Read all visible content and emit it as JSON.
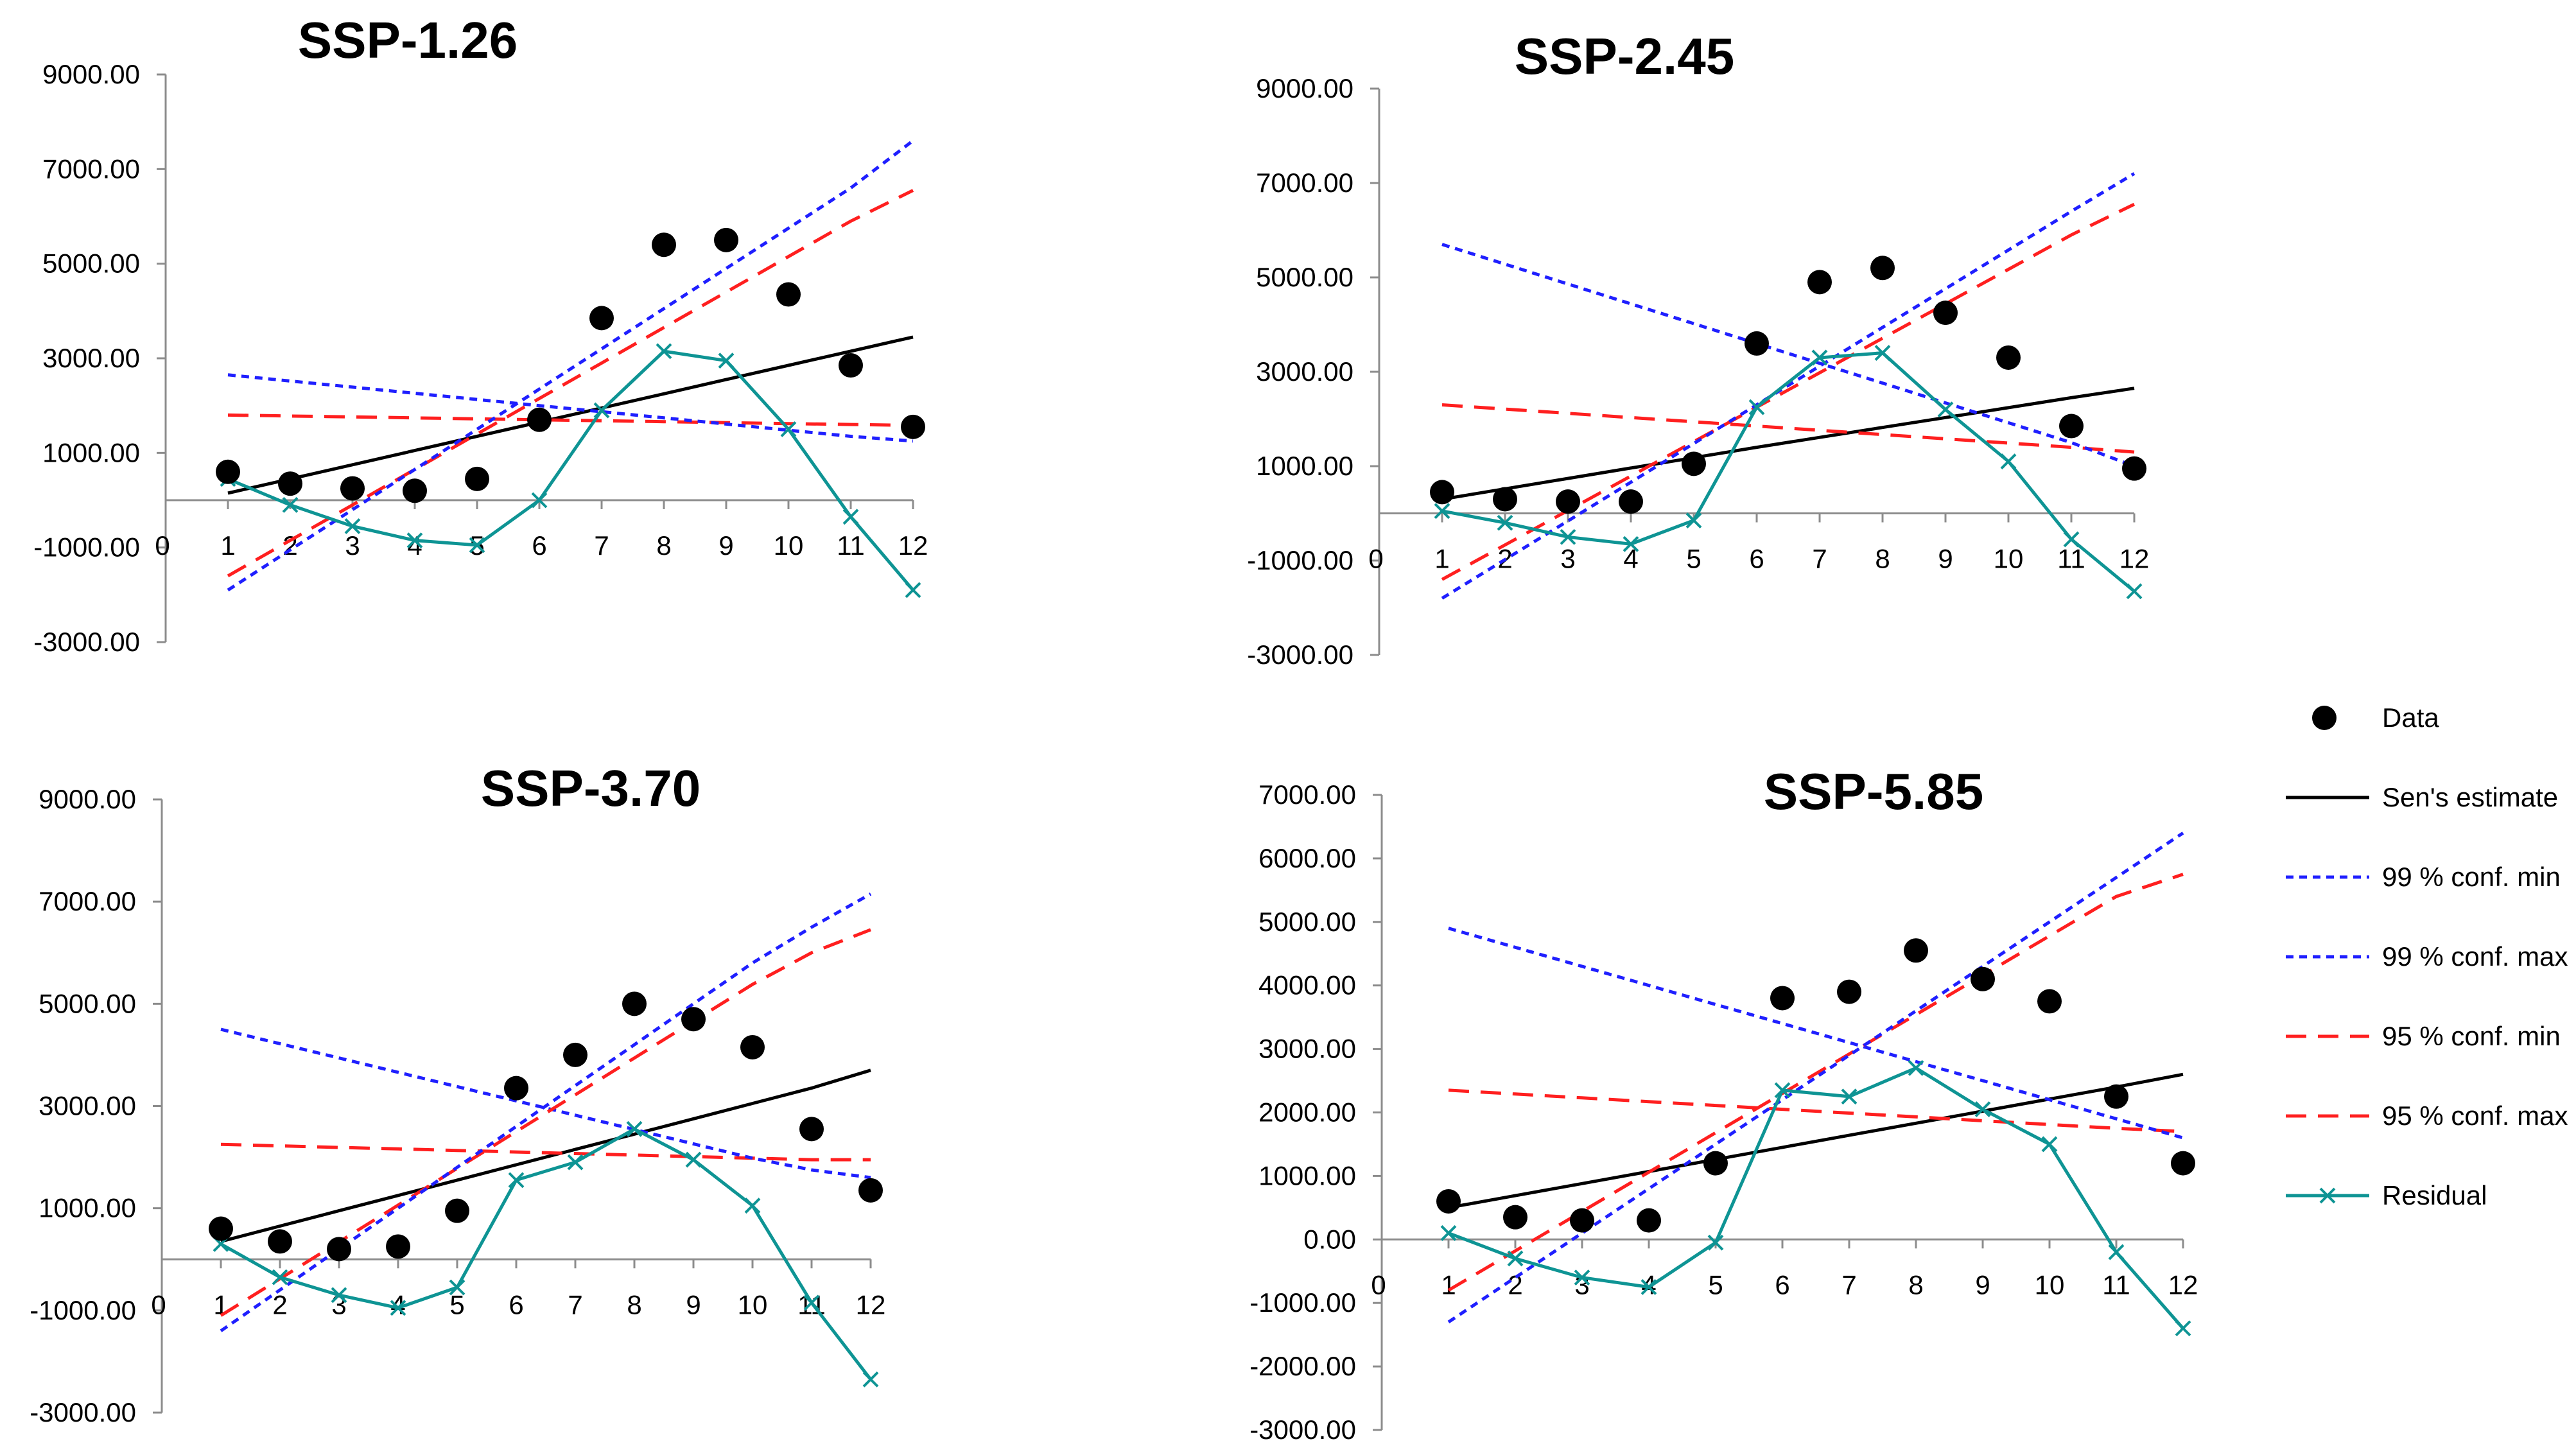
{
  "chart_data": [
    {
      "type": "scatter",
      "title": "SSP-1.26",
      "xlabel": "",
      "ylabel": "",
      "x": [
        1,
        2,
        3,
        4,
        5,
        6,
        7,
        8,
        9,
        10,
        11,
        12
      ],
      "xlim": [
        0,
        12
      ],
      "x_ticks": [
        "0",
        "1",
        "2",
        "3",
        "4",
        "5",
        "6",
        "7",
        "8",
        "9",
        "10",
        "11",
        "12"
      ],
      "ylim": [
        -3000,
        9000
      ],
      "y_ticks": [
        "9000.00",
        "7000.00",
        "5000.00",
        "3000.00",
        "1000.00",
        "-1000.00",
        "-3000.00"
      ],
      "y_tick_values": [
        9000,
        7000,
        5000,
        3000,
        1000,
        -1000,
        -3000
      ],
      "series": [
        {
          "name": "Data",
          "values": [
            600,
            350,
            250,
            200,
            450,
            1700,
            3850,
            5400,
            5500,
            4350,
            2850,
            1550
          ]
        },
        {
          "name": "Sen's estimate",
          "values": [
            150,
            450,
            750,
            1050,
            1350,
            1650,
            1950,
            2250,
            2550,
            2850,
            3150,
            3450
          ]
        },
        {
          "name": "99 % conf. min",
          "values": [
            -1900,
            -1050,
            -200,
            650,
            1500,
            2350,
            3200,
            4050,
            4900,
            5750,
            6600,
            7600
          ]
        },
        {
          "name": "99 % conf. max",
          "values": [
            2650,
            2520,
            2390,
            2260,
            2130,
            2000,
            1870,
            1740,
            1610,
            1480,
            1350,
            1250
          ]
        },
        {
          "name": "95 % conf. min",
          "values": [
            -1600,
            -850,
            -100,
            650,
            1400,
            2150,
            2900,
            3650,
            4400,
            5150,
            5900,
            6550
          ]
        },
        {
          "name": "95 % conf. max",
          "values": [
            1800,
            1780,
            1760,
            1740,
            1720,
            1700,
            1680,
            1660,
            1640,
            1620,
            1600,
            1580
          ]
        },
        {
          "name": "Residual",
          "values": [
            450,
            -100,
            -550,
            -850,
            -950,
            0,
            1900,
            3150,
            2950,
            1500,
            -350,
            -1900
          ]
        }
      ]
    },
    {
      "type": "scatter",
      "title": "SSP-2.45",
      "xlabel": "",
      "ylabel": "",
      "x": [
        1,
        2,
        3,
        4,
        5,
        6,
        7,
        8,
        9,
        10,
        11,
        12
      ],
      "xlim": [
        0,
        12
      ],
      "x_ticks": [
        "0",
        "1",
        "2",
        "3",
        "4",
        "5",
        "6",
        "7",
        "8",
        "9",
        "10",
        "11",
        "12"
      ],
      "ylim": [
        -3000,
        9000
      ],
      "y_ticks": [
        "9000.00",
        "7000.00",
        "5000.00",
        "3000.00",
        "1000.00",
        "-1000.00",
        "-3000.00"
      ],
      "y_tick_values": [
        9000,
        7000,
        5000,
        3000,
        1000,
        -1000,
        -3000
      ],
      "series": [
        {
          "name": "Data",
          "values": [
            450,
            300,
            250,
            250,
            1050,
            3600,
            4900,
            5200,
            4250,
            3300,
            1850,
            950
          ]
        },
        {
          "name": "Sen's estimate",
          "values": [
            300,
            520,
            740,
            960,
            1180,
            1400,
            1610,
            1820,
            2030,
            2240,
            2450,
            2650
          ]
        },
        {
          "name": "99 % conf. min",
          "values": [
            -1800,
            -980,
            -160,
            660,
            1480,
            2300,
            3120,
            3940,
            4760,
            5580,
            6400,
            7200
          ]
        },
        {
          "name": "99 % conf. max",
          "values": [
            5700,
            5280,
            4860,
            4440,
            4020,
            3600,
            3180,
            2760,
            2340,
            1920,
            1500,
            1000
          ]
        },
        {
          "name": "95 % conf. min",
          "values": [
            -1400,
            -670,
            60,
            790,
            1520,
            2250,
            2980,
            3710,
            4440,
            5170,
            5900,
            6550
          ]
        },
        {
          "name": "95 % conf. max",
          "values": [
            2300,
            2210,
            2120,
            2030,
            1940,
            1850,
            1760,
            1670,
            1580,
            1490,
            1400,
            1300
          ]
        },
        {
          "name": "Residual",
          "values": [
            50,
            -200,
            -500,
            -650,
            -150,
            2250,
            3300,
            3400,
            2200,
            1100,
            -550,
            -1650
          ]
        }
      ]
    },
    {
      "type": "scatter",
      "title": "SSP-3.70",
      "xlabel": "",
      "ylabel": "",
      "x": [
        1,
        2,
        3,
        4,
        5,
        6,
        7,
        8,
        9,
        10,
        11,
        12
      ],
      "xlim": [
        0,
        12
      ],
      "x_ticks": [
        "0",
        "1",
        "2",
        "3",
        "4",
        "5",
        "6",
        "7",
        "8",
        "9",
        "10",
        "11",
        "12"
      ],
      "ylim": [
        -3000,
        9000
      ],
      "y_ticks": [
        "9000.00",
        "7000.00",
        "5000.00",
        "3000.00",
        "1000.00",
        "-1000.00",
        "-3000.00"
      ],
      "y_tick_values": [
        9000,
        7000,
        5000,
        3000,
        1000,
        -1000,
        -3000
      ],
      "series": [
        {
          "name": "Data",
          "values": [
            600,
            350,
            200,
            250,
            950,
            3350,
            4000,
            5000,
            4700,
            4150,
            2550,
            1350
          ]
        },
        {
          "name": "Sen's estimate",
          "values": [
            350,
            650,
            950,
            1250,
            1550,
            1850,
            2150,
            2450,
            2750,
            3050,
            3350,
            3700
          ]
        },
        {
          "name": "99 % conf. min",
          "values": [
            -1400,
            -600,
            200,
            1000,
            1800,
            2600,
            3400,
            4200,
            5000,
            5800,
            6500,
            7150
          ]
        },
        {
          "name": "99 % conf. max",
          "values": [
            4500,
            4220,
            3940,
            3660,
            3380,
            3100,
            2820,
            2540,
            2260,
            1980,
            1750,
            1600
          ]
        },
        {
          "name": "95 % conf. min",
          "values": [
            -1100,
            -380,
            340,
            1060,
            1780,
            2500,
            3220,
            3940,
            4660,
            5380,
            6000,
            6450
          ]
        },
        {
          "name": "95 % conf. max",
          "values": [
            2250,
            2220,
            2190,
            2160,
            2130,
            2100,
            2070,
            2040,
            2010,
            1980,
            1950,
            1950
          ]
        },
        {
          "name": "Residual",
          "values": [
            300,
            -350,
            -700,
            -950,
            -550,
            1550,
            1900,
            2550,
            1950,
            1050,
            -850,
            -2350
          ]
        }
      ]
    },
    {
      "type": "scatter",
      "title": "SSP-5.85",
      "xlabel": "",
      "ylabel": "",
      "x": [
        1,
        2,
        3,
        4,
        5,
        6,
        7,
        8,
        9,
        10,
        11,
        12
      ],
      "xlim": [
        0,
        12
      ],
      "x_ticks": [
        "0",
        "1",
        "2",
        "3",
        "4",
        "5",
        "6",
        "7",
        "8",
        "9",
        "10",
        "11",
        "12"
      ],
      "ylim": [
        -3000,
        7000
      ],
      "y_ticks": [
        "7000.00",
        "6000.00",
        "5000.00",
        "4000.00",
        "3000.00",
        "2000.00",
        "1000.00",
        "0.00",
        "-1000.00",
        "-2000.00",
        "-3000.00"
      ],
      "y_tick_values": [
        7000,
        6000,
        5000,
        4000,
        3000,
        2000,
        1000,
        0,
        -1000,
        -2000,
        -3000
      ],
      "series": [
        {
          "name": "Data",
          "values": [
            600,
            350,
            300,
            300,
            1200,
            3800,
            3900,
            4550,
            4100,
            3750,
            2250,
            1200
          ]
        },
        {
          "name": "Sen's estimate",
          "values": [
            500,
            690,
            880,
            1070,
            1260,
            1450,
            1640,
            1830,
            2020,
            2210,
            2400,
            2600
          ]
        },
        {
          "name": "99 % conf. min",
          "values": [
            -1300,
            -600,
            100,
            800,
            1500,
            2200,
            2900,
            3600,
            4300,
            5000,
            5700,
            6400
          ]
        },
        {
          "name": "99 % conf. max",
          "values": [
            4900,
            4600,
            4300,
            4000,
            3700,
            3400,
            3100,
            2800,
            2500,
            2200,
            1900,
            1600
          ]
        },
        {
          "name": "95 % conf. min",
          "values": [
            -800,
            -180,
            440,
            1060,
            1680,
            2300,
            2920,
            3540,
            4160,
            4780,
            5400,
            5750
          ]
        },
        {
          "name": "95 % conf. max",
          "values": [
            2350,
            2290,
            2230,
            2170,
            2110,
            2050,
            1990,
            1930,
            1870,
            1810,
            1750,
            1700
          ]
        },
        {
          "name": "Residual",
          "values": [
            100,
            -300,
            -600,
            -750,
            -50,
            2350,
            2250,
            2700,
            2050,
            1500,
            -200,
            -1400
          ]
        }
      ]
    }
  ],
  "legend": {
    "placement": "right",
    "items": [
      {
        "label": "Data",
        "kind": "marker",
        "color": "#000000"
      },
      {
        "label": "Sen's estimate",
        "kind": "solid",
        "color": "#000000"
      },
      {
        "label": "99 % conf. min",
        "kind": "dotted",
        "color": "#1f1fff"
      },
      {
        "label": "99 % conf. max",
        "kind": "dotted",
        "color": "#1f1fff"
      },
      {
        "label": "95 % conf. min",
        "kind": "dashed",
        "color": "#ff1f1f"
      },
      {
        "label": "95 % conf. max",
        "kind": "dashed",
        "color": "#ff1f1f"
      },
      {
        "label": "Residual",
        "kind": "cross-line",
        "color": "#0e9494"
      }
    ]
  },
  "colors": {
    "data": "#000000",
    "sen": "#000000",
    "conf99": "#1f1fff",
    "conf95": "#ff1f1f",
    "residual": "#0e9494",
    "axis": "#8c8c8c"
  }
}
